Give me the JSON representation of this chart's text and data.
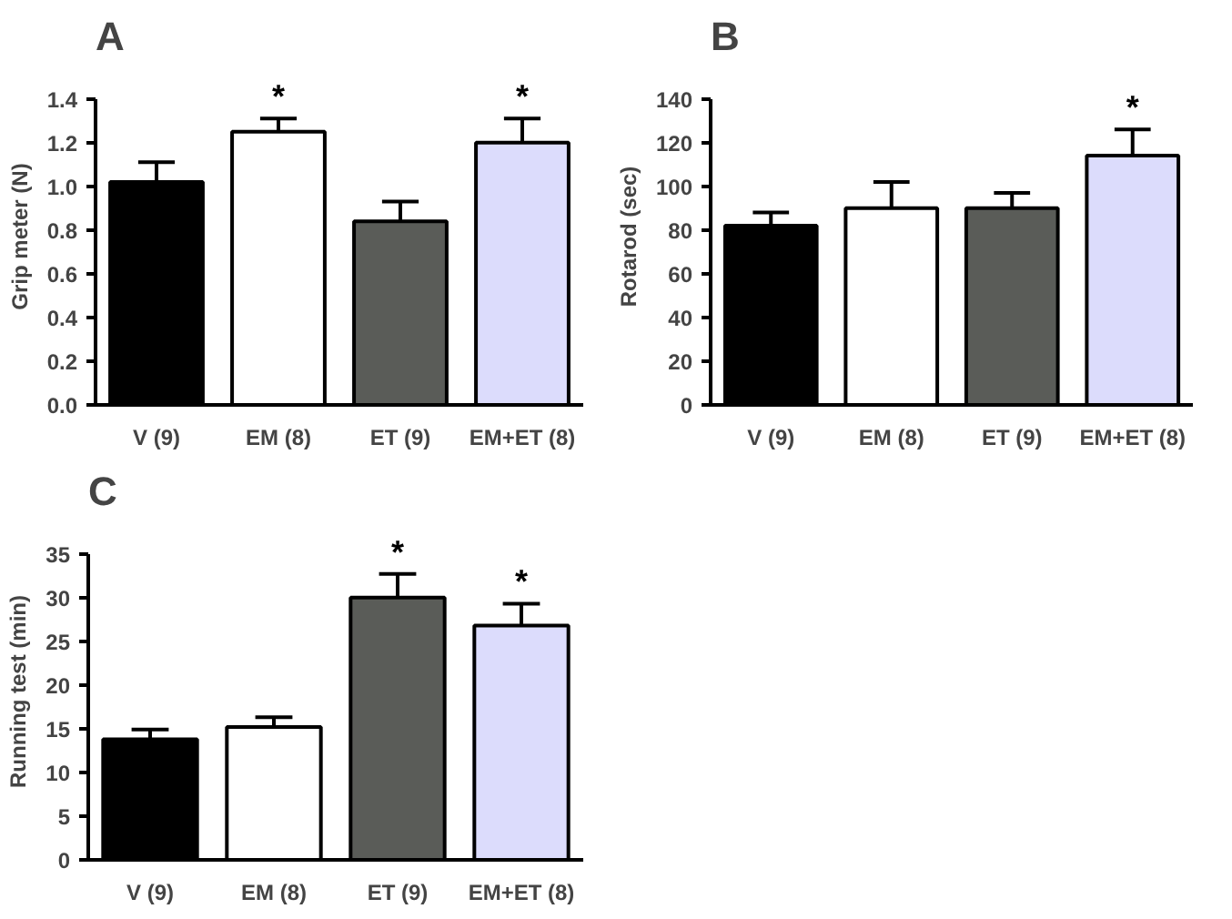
{
  "chart_data": [
    {
      "type": "bar",
      "title": "A",
      "ylabel": "Grip meter (N)",
      "categories": [
        "V (9)",
        "EM (8)",
        "ET (9)",
        "EM+ET (8)"
      ],
      "values": [
        1.02,
        1.25,
        0.84,
        1.2
      ],
      "colors": [
        "#000000",
        "#ffffff",
        "#5a5c58",
        "#dcdcfc"
      ],
      "errors": [
        [
          1.02,
          1.11
        ],
        [
          1.25,
          1.31
        ],
        [
          0.84,
          0.93
        ],
        [
          1.2,
          1.31
        ]
      ],
      "ylim": [
        0,
        1.4
      ],
      "yticks": [
        {
          "value": 0,
          "label": "0.0"
        },
        0.2,
        0.4,
        0.6,
        0.8,
        {
          "value": 1,
          "label": "1.0"
        },
        1.2,
        1.4
      ],
      "grid": false,
      "annotations": [
        {
          "text": "*",
          "x": "EM (8)",
          "y": 1.31
        },
        {
          "text": "*",
          "x": "EM+ET (8)",
          "y": 1.31
        }
      ]
    },
    {
      "type": "bar",
      "title": "B",
      "ylabel": "Rotarod (sec)",
      "categories": [
        "V (9)",
        "EM (8)",
        "ET (9)",
        "EM+ET (8)"
      ],
      "values": [
        82,
        90,
        90,
        114
      ],
      "colors": [
        "#000000",
        "#ffffff",
        "#5a5c58",
        "#dcdcfc"
      ],
      "errors": [
        [
          82,
          88
        ],
        [
          90,
          102
        ],
        [
          90,
          97
        ],
        [
          114,
          126
        ]
      ],
      "ylim": [
        0,
        140
      ],
      "yticks": [
        0,
        20,
        40,
        60,
        80,
        100,
        120,
        140
      ],
      "grid": false,
      "annotations": [
        {
          "text": "*",
          "x": "EM+ET (8)",
          "y": 126
        }
      ]
    },
    {
      "type": "bar",
      "title": "C",
      "ylabel": "Running test (min)",
      "categories": [
        "V (9)",
        "EM (8)",
        "ET (9)",
        "EM+ET (8)"
      ],
      "values": [
        13.8,
        15.2,
        30,
        26.8
      ],
      "colors": [
        "#000000",
        "#ffffff",
        "#5a5c58",
        "#dcdcfc"
      ],
      "errors": [
        [
          13.8,
          14.9
        ],
        [
          15.2,
          16.3
        ],
        [
          30,
          32.7
        ],
        [
          26.8,
          29.3
        ]
      ],
      "ylim": [
        0,
        35
      ],
      "yticks": [
        0,
        5,
        10,
        15,
        20,
        25,
        30,
        35
      ],
      "grid": false,
      "annotations": [
        {
          "text": "*",
          "x": "ET (9)",
          "y": 32.7
        },
        {
          "text": "*",
          "x": "EM+ET (8)",
          "y": 29.3
        }
      ]
    }
  ]
}
